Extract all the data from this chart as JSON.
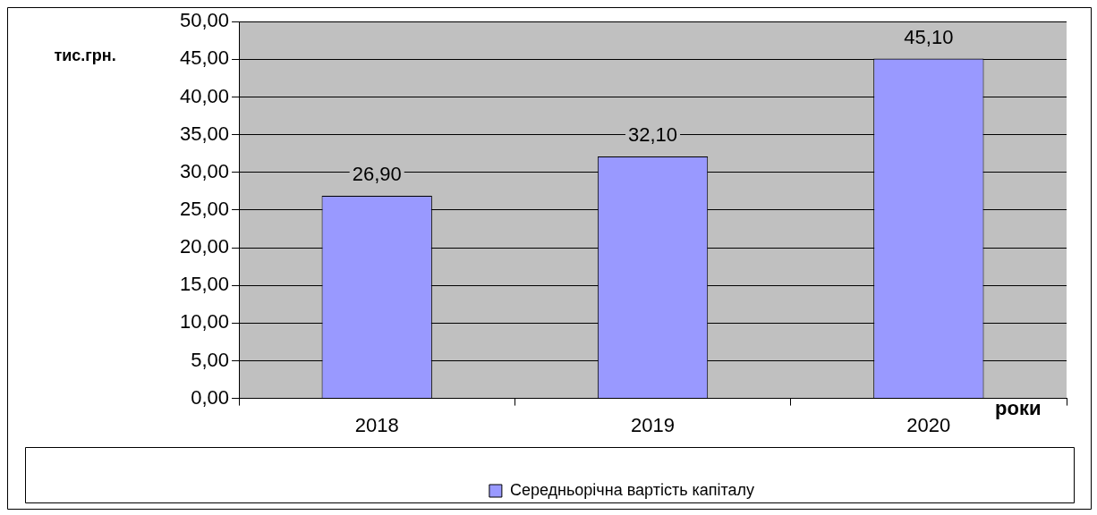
{
  "chart_data": {
    "type": "bar",
    "categories": [
      "2018",
      "2019",
      "2020"
    ],
    "series": [
      {
        "name": "Середньорічна вартість капіталу",
        "color": "#9999ff",
        "values": [
          26.9,
          32.1,
          45.1
        ],
        "value_labels": [
          "26,90",
          "32,10",
          "45,10"
        ]
      }
    ],
    "ylabel": "тис.грн.",
    "xlabel": "роки",
    "ylim": [
      0,
      50
    ],
    "yticks": [
      {
        "value": 0,
        "label": "0,00"
      },
      {
        "value": 5,
        "label": "5,00"
      },
      {
        "value": 10,
        "label": "10,00"
      },
      {
        "value": 15,
        "label": "15,00"
      },
      {
        "value": 20,
        "label": "20,00"
      },
      {
        "value": 25,
        "label": "25,00"
      },
      {
        "value": 30,
        "label": "30,00"
      },
      {
        "value": 35,
        "label": "35,00"
      },
      {
        "value": 40,
        "label": "40,00"
      },
      {
        "value": 45,
        "label": "45,00"
      },
      {
        "value": 50,
        "label": "50,00"
      }
    ],
    "grid": "y",
    "legend": "bottom"
  }
}
